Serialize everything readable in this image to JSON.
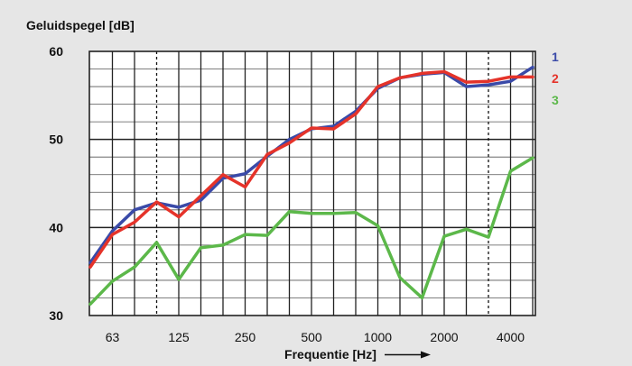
{
  "chart_data": {
    "type": "line",
    "ylabel": "Geluidspegel [dB]",
    "xlabel": "Frequentie [Hz]",
    "ylim": [
      30,
      60
    ],
    "y_ticks": [
      "30",
      "40",
      "50",
      "60"
    ],
    "x_ticks": [
      "63",
      "125",
      "250",
      "500",
      "1000",
      "2000",
      "4000"
    ],
    "x": [
      50,
      63,
      80,
      100,
      125,
      160,
      200,
      250,
      315,
      400,
      500,
      630,
      800,
      1000,
      1250,
      1600,
      2000,
      2500,
      3150,
      4000,
      5000
    ],
    "grid": true,
    "series": [
      {
        "name": "1",
        "color": "#3a4aa8",
        "values": [
          36.0,
          39.6,
          42.0,
          42.8,
          42.3,
          43.1,
          45.6,
          46.1,
          48.1,
          50.0,
          51.2,
          51.5,
          53.2,
          55.8,
          57.0,
          57.4,
          57.6,
          56.0,
          56.2,
          56.6,
          58.2
        ]
      },
      {
        "name": "2",
        "color": "#e5332a",
        "values": [
          35.5,
          39.2,
          40.6,
          42.9,
          41.2,
          43.6,
          46.0,
          44.6,
          48.3,
          49.6,
          51.3,
          51.2,
          52.9,
          56.0,
          57.0,
          57.5,
          57.7,
          56.5,
          56.6,
          57.1,
          57.1
        ]
      },
      {
        "name": "3",
        "color": "#5cb84a",
        "values": [
          31.3,
          33.9,
          35.5,
          38.3,
          34.1,
          37.7,
          38.0,
          39.2,
          39.1,
          41.8,
          41.6,
          41.6,
          41.7,
          40.2,
          34.3,
          32.0,
          39.0,
          39.8,
          38.9,
          46.4,
          47.9
        ]
      }
    ]
  }
}
